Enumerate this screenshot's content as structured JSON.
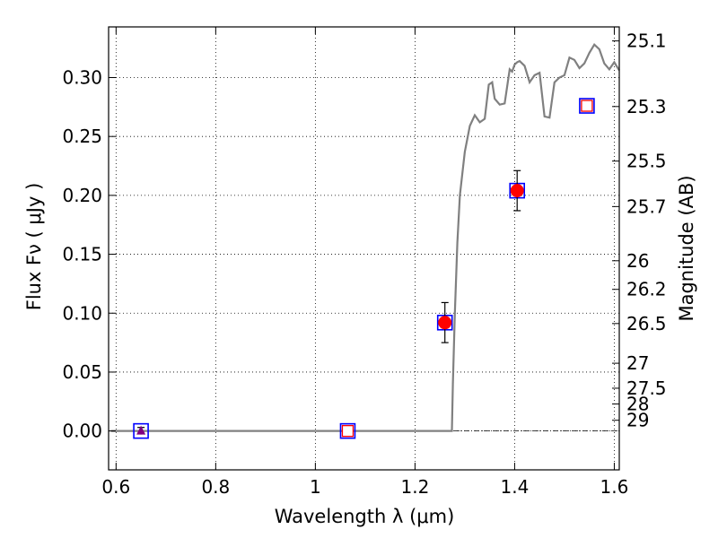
{
  "chart_data": {
    "type": "scatter",
    "xlabel": "Wavelength  λ (μm)",
    "ylabel": "Flux  Fν  ( μJy )",
    "ylabel_right": "Magnitude (AB)",
    "xlim": [
      0.585,
      1.61
    ],
    "ylim": [
      -0.033,
      0.343
    ],
    "grid": true,
    "x_ticks": [
      {
        "value": 0.6,
        "label": "0.6"
      },
      {
        "value": 0.8,
        "label": "0.8"
      },
      {
        "value": 1.0,
        "label": "1"
      },
      {
        "value": 1.2,
        "label": "1.2"
      },
      {
        "value": 1.4,
        "label": "1.4"
      },
      {
        "value": 1.6,
        "label": "1.6"
      }
    ],
    "y_ticks": [
      {
        "value": 0.0,
        "label": "0.00"
      },
      {
        "value": 0.05,
        "label": "0.05"
      },
      {
        "value": 0.1,
        "label": "0.10"
      },
      {
        "value": 0.15,
        "label": "0.15"
      },
      {
        "value": 0.2,
        "label": "0.20"
      },
      {
        "value": 0.25,
        "label": "0.25"
      },
      {
        "value": 0.3,
        "label": "0.30"
      }
    ],
    "right_ticks": [
      {
        "flux": 0.3311,
        "label": "25.1"
      },
      {
        "flux": 0.2754,
        "label": "25.3"
      },
      {
        "flux": 0.2291,
        "label": "25.5"
      },
      {
        "flux": 0.1905,
        "label": "25.7"
      },
      {
        "flux": 0.1445,
        "label": "26"
      },
      {
        "flux": 0.1202,
        "label": "26.2"
      },
      {
        "flux": 0.0912,
        "label": "26.5"
      },
      {
        "flux": 0.0575,
        "label": "27"
      },
      {
        "flux": 0.0363,
        "label": "27.5"
      },
      {
        "flux": 0.0229,
        "label": "28"
      },
      {
        "flux": 0.0091,
        "label": "29"
      }
    ],
    "series": [
      {
        "kind": "model",
        "style": "line",
        "color": "#808080",
        "x": [
          0.59,
          1.274,
          1.276,
          1.28,
          1.285,
          1.29,
          1.3,
          1.31,
          1.32,
          1.33,
          1.34,
          1.348,
          1.355,
          1.36,
          1.37,
          1.38,
          1.39,
          1.395,
          1.4,
          1.405,
          1.41,
          1.42,
          1.43,
          1.44,
          1.45,
          1.46,
          1.47,
          1.48,
          1.49,
          1.5,
          1.51,
          1.52,
          1.53,
          1.54,
          1.55,
          1.56,
          1.57,
          1.58,
          1.59,
          1.6,
          1.61
        ],
        "y": [
          0.0,
          0.0,
          0.04,
          0.1,
          0.16,
          0.2,
          0.237,
          0.259,
          0.268,
          0.262,
          0.265,
          0.294,
          0.296,
          0.282,
          0.277,
          0.278,
          0.307,
          0.305,
          0.311,
          0.313,
          0.314,
          0.31,
          0.296,
          0.302,
          0.304,
          0.267,
          0.266,
          0.296,
          0.3,
          0.302,
          0.317,
          0.315,
          0.308,
          0.312,
          0.321,
          0.328,
          0.324,
          0.312,
          0.307,
          0.313,
          0.306
        ]
      },
      {
        "kind": "model_photometry",
        "style": "open-square",
        "color": "#0000ff",
        "x": [
          0.65,
          1.065,
          1.26,
          1.405,
          1.545
        ],
        "y": [
          0.0,
          0.0,
          0.092,
          0.204,
          0.276
        ]
      },
      {
        "kind": "observed",
        "style": "filled-circle",
        "color": "#ff0000",
        "x": [
          1.26,
          1.405
        ],
        "y": [
          0.092,
          0.204
        ],
        "err": [
          0.017,
          0.017
        ]
      },
      {
        "kind": "upper_limit",
        "style": "open-square-small",
        "color": "#ff0000",
        "x": [
          1.065,
          1.545
        ],
        "y": [
          0.0,
          0.276
        ]
      },
      {
        "kind": "detection_low",
        "style": "triangle",
        "color": "#800080",
        "x": [
          0.65
        ],
        "y": [
          0.0
        ],
        "err": [
          0.003
        ]
      }
    ]
  }
}
